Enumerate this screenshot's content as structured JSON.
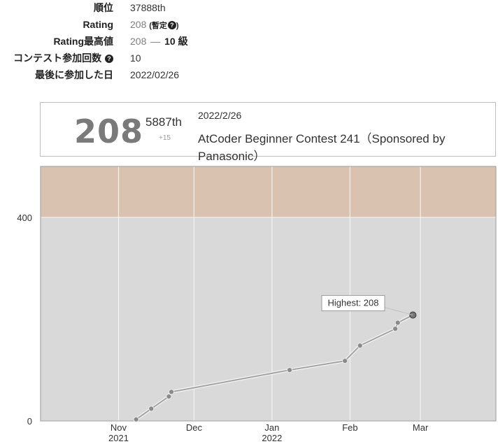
{
  "profile": {
    "rank_label": "順位",
    "rank_value": "37888th",
    "rating_label": "Rating",
    "rating_value": "208",
    "rating_provisional": "(暫定",
    "rating_provisional_close": ")",
    "max_rating_label": "Rating最高値",
    "max_rating_value": "208",
    "max_rating_dash": "—",
    "max_rating_kyu": "10 級",
    "contests_label": "コンテスト参加回数",
    "contests_value": "10",
    "last_label": "最後に参加した日",
    "last_value": "2022/02/26",
    "help_icon": "?"
  },
  "card": {
    "rating": "208",
    "place": "5887th",
    "delta": "+15",
    "date": "2022/2/26",
    "contest_name": "AtCoder Beginner Contest 241（Sponsored by Panasonic）"
  },
  "chart_data": {
    "type": "line",
    "title": "",
    "ylim": [
      0,
      500
    ],
    "y_ticks": [
      {
        "value": 0,
        "label": "0"
      },
      {
        "value": 400,
        "label": "400"
      }
    ],
    "x_start": "2021-10-01",
    "x_end": "2022-03-31",
    "x_ticks": [
      {
        "date": "2021-11-01",
        "label": "Nov",
        "sub": "2021"
      },
      {
        "date": "2021-12-01",
        "label": "Dec",
        "sub": ""
      },
      {
        "date": "2022-01-01",
        "label": "Jan",
        "sub": "2022"
      },
      {
        "date": "2022-02-01",
        "label": "Feb",
        "sub": ""
      },
      {
        "date": "2022-03-01",
        "label": "Mar",
        "sub": ""
      }
    ],
    "bands": [
      {
        "from": 0,
        "to": 400,
        "color": "#d9d9d9"
      },
      {
        "from": 400,
        "to": 500,
        "color": "#d9c3b0"
      }
    ],
    "points": [
      {
        "date": "2021-11-08",
        "value": 3
      },
      {
        "date": "2021-11-14",
        "value": 24
      },
      {
        "date": "2021-11-21",
        "value": 48
      },
      {
        "date": "2021-11-22",
        "value": 57
      },
      {
        "date": "2022-01-08",
        "value": 100
      },
      {
        "date": "2022-01-30",
        "value": 118
      },
      {
        "date": "2022-02-05",
        "value": 148
      },
      {
        "date": "2022-02-19",
        "value": 181
      },
      {
        "date": "2022-02-20",
        "value": 193
      },
      {
        "date": "2022-02-26",
        "value": 208
      }
    ],
    "annotation": "Highest: 208"
  }
}
